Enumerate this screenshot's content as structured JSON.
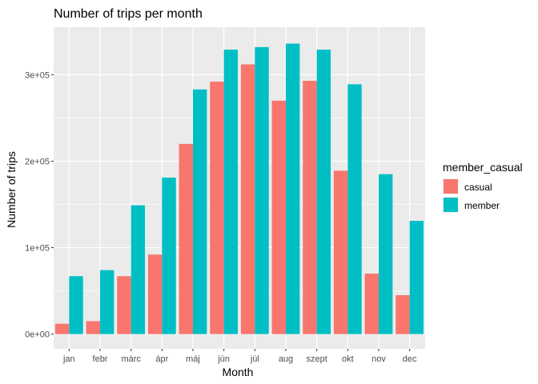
{
  "chart_data": {
    "type": "bar",
    "title": "Number of trips per month",
    "xlabel": "Month",
    "ylabel": "Number of trips",
    "categories": [
      "jan",
      "febr",
      "márc",
      "ápr",
      "máj",
      "jún",
      "júl",
      "aug",
      "szept",
      "okt",
      "nov",
      "dec"
    ],
    "series": [
      {
        "name": "casual",
        "color": "#F8766D",
        "values": [
          12000,
          15000,
          67000,
          92000,
          220000,
          292000,
          312000,
          270000,
          293000,
          189000,
          70000,
          45000
        ]
      },
      {
        "name": "member",
        "color": "#00BFC4",
        "values": [
          67000,
          74000,
          149000,
          181000,
          283000,
          329000,
          332000,
          336000,
          329000,
          289000,
          185000,
          131000
        ]
      }
    ],
    "ylim": [
      -17000,
      355000
    ],
    "yticks": [
      0,
      100000,
      200000,
      300000
    ],
    "ytick_labels": [
      "0e+00",
      "1e+05",
      "2e+05",
      "3e+05"
    ],
    "legend": {
      "title": "member_casual",
      "position": "right"
    },
    "grid": true,
    "panel_background": "#EBEBEB"
  }
}
